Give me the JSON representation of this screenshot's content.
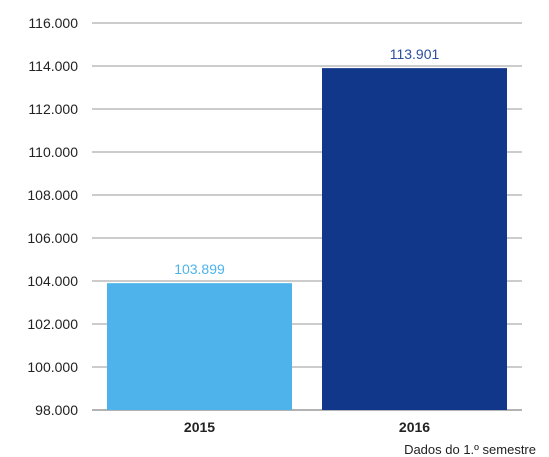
{
  "chart_data": {
    "type": "bar",
    "categories": [
      "2015",
      "2016"
    ],
    "values": [
      103899,
      113901
    ],
    "data_labels": [
      "103.899",
      "113.901"
    ],
    "colors": [
      "#4db3ea",
      "#11378a"
    ],
    "label_colors": [
      "#4db3ea",
      "#2a4f9e"
    ],
    "ylim": [
      98000,
      116000
    ],
    "yticks": [
      98000,
      100000,
      102000,
      104000,
      106000,
      108000,
      110000,
      112000,
      114000,
      116000
    ],
    "ytick_labels": [
      "98.000",
      "100.000",
      "102.000",
      "104.000",
      "106.000",
      "108.000",
      "110.000",
      "112.000",
      "114.000",
      "116.000"
    ],
    "grid": true,
    "legend": "none"
  },
  "note": "Dados do 1.º semestre"
}
